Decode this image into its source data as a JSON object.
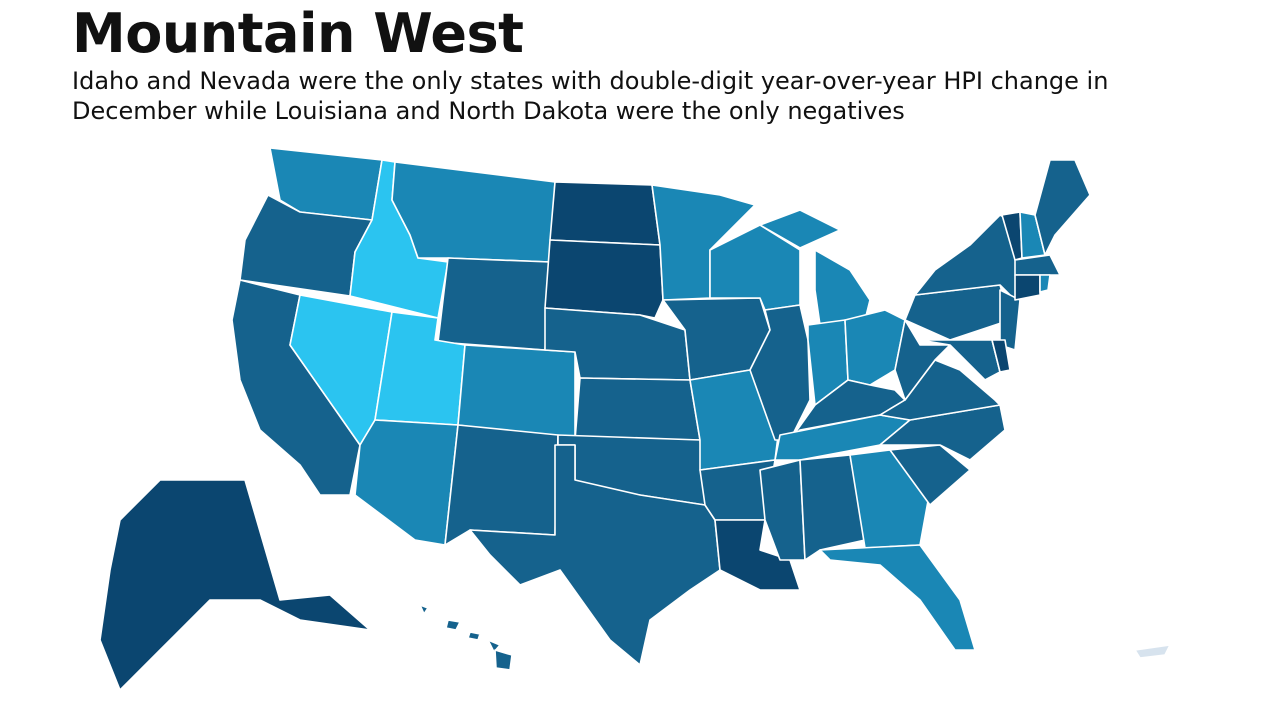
{
  "header": {
    "title": "Mountain West",
    "subtitle": "Idaho and Nevada were the only states with double-digit year-over-year HPI change in December while Louisiana and North Dakota were the only negatives"
  }
}
